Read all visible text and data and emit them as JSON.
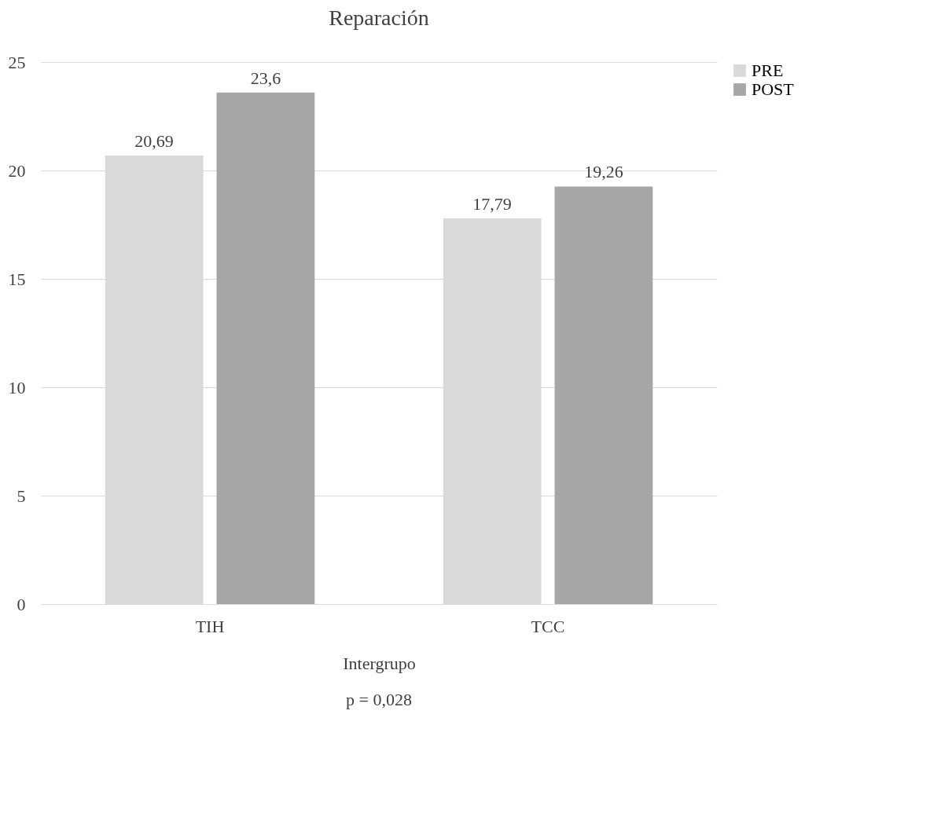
{
  "chart_data": {
    "type": "bar",
    "title": "Reparación",
    "xlabel": "Intergrupo",
    "categories": [
      "TIH",
      "TCC"
    ],
    "series": [
      {
        "name": "PRE",
        "color": "#d9d9d9",
        "values": [
          20.69,
          17.79
        ],
        "value_labels": [
          "20,69",
          "17,79"
        ]
      },
      {
        "name": "POST",
        "color": "#a6a6a6",
        "values": [
          23.6,
          19.26
        ],
        "value_labels": [
          "23,6",
          "19,26"
        ]
      }
    ],
    "ylim": [
      0,
      25
    ],
    "yticks": [
      0,
      5,
      10,
      15,
      20,
      25
    ],
    "grid": "y",
    "legend": "right",
    "annotations": [
      "p = 0,028"
    ]
  }
}
